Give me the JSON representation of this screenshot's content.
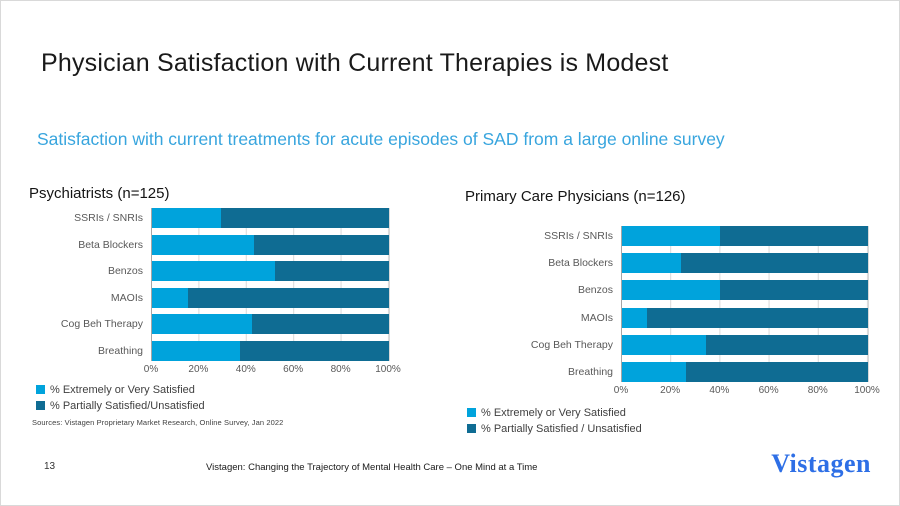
{
  "slide": {
    "title": "Physician Satisfaction with Current Therapies is Modest",
    "subtitle": "Satisfaction with current treatments for acute episodes of SAD from a large online survey",
    "source": "Sources: Vistagen Proprietary Market Research, Online Survey, Jan 2022",
    "footer": {
      "page_number": "13",
      "center_text": "Vistagen: Changing the Trajectory of Mental Health Care – One Mind at a Time",
      "logo_text": "Vistagen"
    }
  },
  "colors": {
    "extremely_or_very_satisfied": "#00A3DC",
    "partially_satisfied_unsatisfied": "#0F6C93",
    "subtitle_blue": "#38A5DE",
    "logo_blue": "#2E6FE6",
    "gridline": "#D9D9D9",
    "axis_line": "#A6A6A6"
  },
  "chart_data": [
    {
      "type": "bar",
      "orientation": "horizontal",
      "stacked": true,
      "title": "Psychiatrists (n=125)",
      "categories": [
        "SSRIs / SNRIs",
        "Beta Blockers",
        "Benzos",
        "MAOIs",
        "Cog Beh Therapy",
        "Breathing"
      ],
      "series": [
        {
          "name": "% Extremely or Very Satisfied",
          "color": "#00A3DC",
          "values": [
            29,
            43,
            52,
            15,
            42,
            37
          ]
        },
        {
          "name": "% Partially Satisfied/Unsatisfied",
          "color": "#0F6C93",
          "values": [
            71,
            57,
            48,
            85,
            58,
            63
          ]
        }
      ],
      "x_ticks": [
        "0%",
        "20%",
        "40%",
        "60%",
        "80%",
        "100%"
      ],
      "xlim": [
        0,
        100
      ],
      "grid": true,
      "legend_position": "bottom-left"
    },
    {
      "type": "bar",
      "orientation": "horizontal",
      "stacked": true,
      "title": "Primary Care Physicians (n=126)",
      "categories": [
        "SSRIs / SNRIs",
        "Beta Blockers",
        "Benzos",
        "MAOIs",
        "Cog Beh Therapy",
        "Breathing"
      ],
      "series": [
        {
          "name": "% Extremely or Very Satisfied",
          "color": "#00A3DC",
          "values": [
            40,
            24,
            40,
            10,
            34,
            26
          ]
        },
        {
          "name": "% Partially Satisfied / Unsatisfied",
          "color": "#0F6C93",
          "values": [
            60,
            76,
            60,
            90,
            66,
            74
          ]
        }
      ],
      "x_ticks": [
        "0%",
        "20%",
        "40%",
        "60%",
        "80%",
        "100%"
      ],
      "xlim": [
        0,
        100
      ],
      "grid": true,
      "legend_position": "bottom-left"
    }
  ]
}
